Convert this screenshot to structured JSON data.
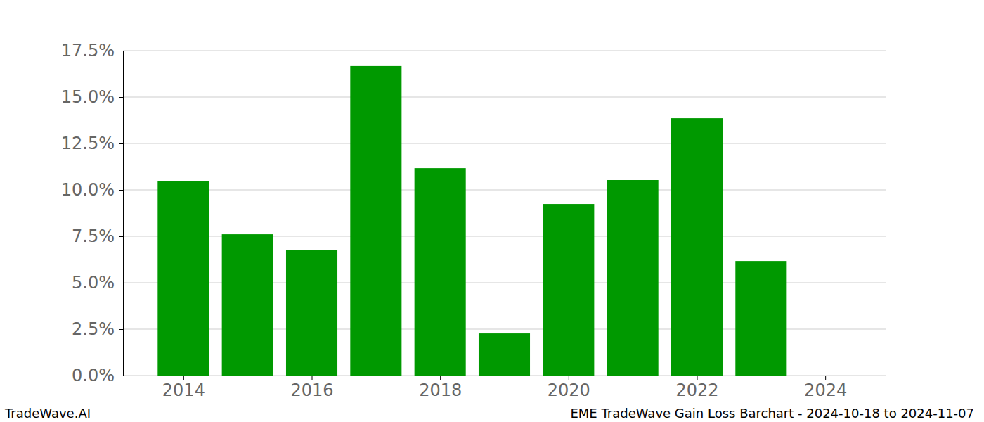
{
  "chart_data": {
    "type": "bar",
    "title": "EME TradeWave Gain Loss Barchart - 2024-10-18 to 2024-11-07",
    "watermark": "TradeWave.AI",
    "x": [
      2014,
      2015,
      2016,
      2017,
      2018,
      2019,
      2020,
      2021,
      2022,
      2023,
      2024
    ],
    "values": [
      10.49,
      7.61,
      6.78,
      16.67,
      11.17,
      2.27,
      9.24,
      10.53,
      13.86,
      6.17,
      0
    ],
    "color": "#009900",
    "xlim": [
      2013.06,
      2024.94
    ],
    "xticks": [
      2014,
      2016,
      2018,
      2020,
      2022,
      2024
    ],
    "ylim": [
      0,
      17.5
    ],
    "yticks": [
      {
        "value": 0,
        "label": "0.0%"
      },
      {
        "value": 2.5,
        "label": "2.5%"
      },
      {
        "value": 5,
        "label": "5.0%"
      },
      {
        "value": 7.5,
        "label": "7.5%"
      },
      {
        "value": 10,
        "label": "10.0%"
      },
      {
        "value": 12.5,
        "label": "12.5%"
      },
      {
        "value": 15,
        "label": "15.0%"
      },
      {
        "value": 17.5,
        "label": "17.5%"
      }
    ],
    "grid": true
  }
}
